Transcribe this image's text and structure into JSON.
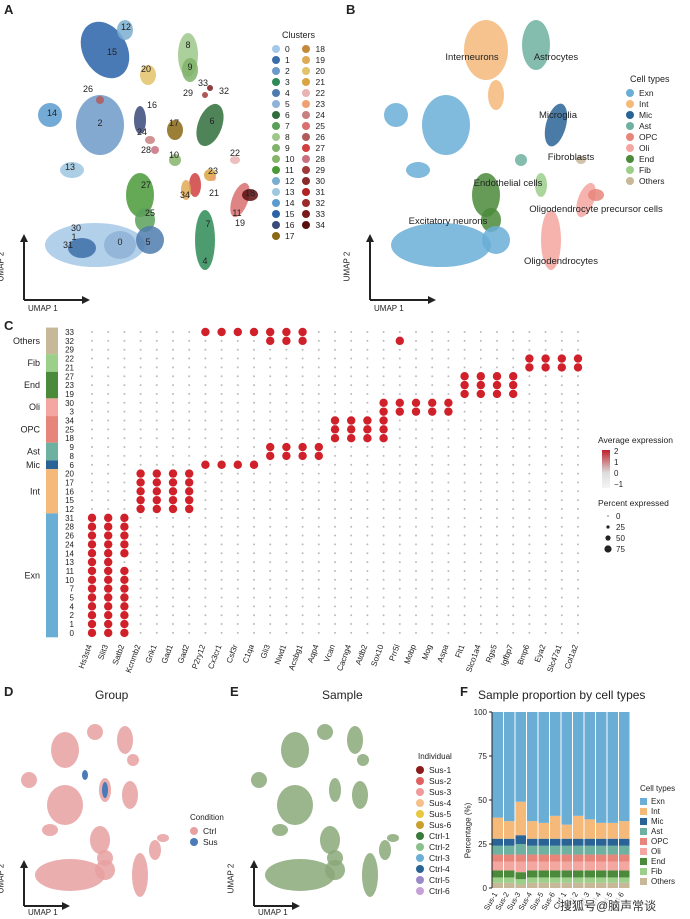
{
  "panels": {
    "A": "A",
    "B": "B",
    "C": "C",
    "D": "D",
    "E": "E",
    "F": "F"
  },
  "umap": {
    "x": "UMAP 1",
    "y": "UMAP 2"
  },
  "panelA": {
    "legend_title": "Clusters",
    "clusters": [
      "0",
      "1",
      "2",
      "3",
      "4",
      "5",
      "6",
      "7",
      "8",
      "9",
      "10",
      "11",
      "12",
      "13",
      "14",
      "15",
      "16",
      "17",
      "18",
      "19",
      "20",
      "21",
      "22",
      "23",
      "24",
      "25",
      "26",
      "27",
      "28",
      "29",
      "30",
      "31",
      "32",
      "33",
      "34"
    ],
    "colors": [
      "#a6c8e8",
      "#3c6fa8",
      "#6d9ac8",
      "#2e8b57",
      "#4f7cae",
      "#8eb3d6",
      "#2f6e3a",
      "#5aa05a",
      "#9dc88a",
      "#7fb36a",
      "#86b46b",
      "#4a9a3a",
      "#7aaed0",
      "#9ec7e0",
      "#5c9bcf",
      "#2a63a8",
      "#3a4a7a",
      "#8b6914",
      "#c48a3a",
      "#e0a955",
      "#e3c26a",
      "#d9a441",
      "#e9b3b3",
      "#f0a070",
      "#c97f7f",
      "#d96f6f",
      "#b05a5a",
      "#d04040",
      "#c9707f",
      "#a03a3a",
      "#8a2a2a",
      "#b22222",
      "#9a2a2a",
      "#7a1a1a",
      "#5a0f0f"
    ],
    "labels": [
      "12",
      "15",
      "8",
      "9",
      "20",
      "33",
      "29",
      "32",
      "26",
      "16",
      "2",
      "14",
      "24",
      "28",
      "17",
      "6",
      "22",
      "10",
      "13",
      "23",
      "21",
      "34",
      "18",
      "19",
      "27",
      "11",
      "25",
      "7",
      "30",
      "1",
      "31",
      "0",
      "5",
      "4",
      "3"
    ]
  },
  "panelB": {
    "legend_title": "Cell types",
    "types": [
      "Exn",
      "Int",
      "Mic",
      "Ast",
      "OPC",
      "Oli",
      "End",
      "Fib",
      "Others"
    ],
    "colors": [
      "#6aaed6",
      "#f5b97a",
      "#2a6496",
      "#6fb1a0",
      "#e8857a",
      "#f4a6a0",
      "#4a8a3a",
      "#9ccf8a",
      "#c8b89a"
    ],
    "labels": [
      "Interneurons",
      "Astrocytes",
      "Microglia",
      "Fibroblasts",
      "Endothelial cells",
      "Oligodendrocyte precursor cells",
      "Excitatory neurons",
      "Oligodendrocytes"
    ]
  },
  "panelC": {
    "genes": [
      "Hs3st4",
      "Slit3",
      "Satb2",
      "Kcnmb2",
      "Grik1",
      "Gad1",
      "Gad2",
      "P2ry12",
      "Cx3cr1",
      "Csf3r",
      "C1qa",
      "Gli3",
      "Nwd1",
      "Acsbg1",
      "Aqp4",
      "Vcan",
      "Cacng4",
      "Atdb2",
      "Sox10",
      "Prr5l",
      "Mobp",
      "Mog",
      "Aspa",
      "Flt1",
      "Slco1a4",
      "Rgs5",
      "Igfbp7",
      "Bmp6",
      "Eya2",
      "Slc47a1",
      "Col1a2"
    ],
    "rows": [
      "33",
      "32",
      "29",
      "22",
      "21",
      "27",
      "23",
      "19",
      "30",
      "3",
      "34",
      "25",
      "18",
      "9",
      "8",
      "6",
      "20",
      "17",
      "16",
      "15",
      "12",
      "31",
      "28",
      "26",
      "24",
      "14",
      "13",
      "11",
      "10",
      "7",
      "5",
      "4",
      "2",
      "1",
      "0"
    ],
    "groups": [
      {
        "name": "Others",
        "start": 0,
        "n": 3,
        "color": "#c8b89a"
      },
      {
        "name": "Fib",
        "start": 3,
        "n": 2,
        "color": "#9ccf8a"
      },
      {
        "name": "End",
        "start": 5,
        "n": 3,
        "color": "#4a8a3a"
      },
      {
        "name": "Oli",
        "start": 8,
        "n": 2,
        "color": "#f4a6a0"
      },
      {
        "name": "OPC",
        "start": 10,
        "n": 3,
        "color": "#e8857a"
      },
      {
        "name": "Ast",
        "start": 13,
        "n": 2,
        "color": "#6fb1a0"
      },
      {
        "name": "Mic",
        "start": 15,
        "n": 1,
        "color": "#2a6496"
      },
      {
        "name": "Int",
        "start": 16,
        "n": 5,
        "color": "#f5b97a"
      },
      {
        "name": "Exn",
        "start": 21,
        "n": 14,
        "color": "#6aaed6"
      }
    ],
    "avg_title": "Average expression",
    "avg_ticks": [
      "2",
      "1",
      "0",
      "−1"
    ],
    "pct_title": "Percent expressed",
    "pct_ticks": [
      "0",
      "25",
      "50",
      "75"
    ],
    "markers": [
      {
        "gene": 0,
        "rows": [
          21,
          22,
          23,
          24,
          25,
          26,
          27,
          28,
          29,
          30,
          31,
          32,
          33,
          34
        ]
      },
      {
        "gene": 1,
        "rows": [
          21,
          22,
          23,
          24,
          25,
          26,
          27,
          28,
          29,
          30,
          31,
          32,
          33,
          34
        ]
      },
      {
        "gene": 2,
        "rows": [
          21,
          22,
          23,
          24,
          25,
          27,
          28,
          29,
          30,
          31,
          32,
          33,
          34
        ]
      },
      {
        "gene": 3,
        "rows": [
          16,
          17,
          18,
          19,
          20
        ]
      },
      {
        "gene": 4,
        "rows": [
          16,
          17,
          18,
          19,
          20
        ]
      },
      {
        "gene": 5,
        "rows": [
          16,
          17,
          18,
          19,
          20
        ]
      },
      {
        "gene": 6,
        "rows": [
          16,
          17,
          18,
          19,
          20
        ]
      },
      {
        "gene": 7,
        "rows": [
          15,
          0
        ]
      },
      {
        "gene": 8,
        "rows": [
          15,
          0
        ]
      },
      {
        "gene": 9,
        "rows": [
          15,
          0
        ]
      },
      {
        "gene": 10,
        "rows": [
          15,
          0
        ]
      },
      {
        "gene": 11,
        "rows": [
          13,
          14,
          0,
          1
        ]
      },
      {
        "gene": 12,
        "rows": [
          13,
          14,
          0,
          1
        ]
      },
      {
        "gene": 13,
        "rows": [
          13,
          14,
          0,
          1
        ]
      },
      {
        "gene": 14,
        "rows": [
          13,
          14
        ]
      },
      {
        "gene": 15,
        "rows": [
          10,
          11,
          12
        ]
      },
      {
        "gene": 16,
        "rows": [
          10,
          11,
          12
        ]
      },
      {
        "gene": 17,
        "rows": [
          10,
          11,
          12
        ]
      },
      {
        "gene": 18,
        "rows": [
          10,
          11,
          12,
          8,
          9
        ]
      },
      {
        "gene": 19,
        "rows": [
          8,
          9,
          1
        ]
      },
      {
        "gene": 20,
        "rows": [
          8,
          9
        ]
      },
      {
        "gene": 21,
        "rows": [
          8,
          9
        ]
      },
      {
        "gene": 22,
        "rows": [
          8,
          9
        ]
      },
      {
        "gene": 23,
        "rows": [
          5,
          6,
          7
        ]
      },
      {
        "gene": 24,
        "rows": [
          5,
          6,
          7
        ]
      },
      {
        "gene": 25,
        "rows": [
          5,
          6,
          7
        ]
      },
      {
        "gene": 26,
        "rows": [
          5,
          6,
          7
        ]
      },
      {
        "gene": 27,
        "rows": [
          3,
          4
        ]
      },
      {
        "gene": 28,
        "rows": [
          3,
          4
        ]
      },
      {
        "gene": 29,
        "rows": [
          3,
          4
        ]
      },
      {
        "gene": 30,
        "rows": [
          3,
          4
        ]
      }
    ]
  },
  "panelD": {
    "title": "Group",
    "legend_title": "Condition",
    "items": [
      "Ctrl",
      "Sus"
    ],
    "colors": [
      "#e8a0a0",
      "#4a7ab8"
    ]
  },
  "panelE": {
    "title": "Sample",
    "legend_title": "Individual",
    "items": [
      "Sus-1",
      "Sus-2",
      "Sus-3",
      "Sus-4",
      "Sus-5",
      "Sus-6",
      "Ctrl-1",
      "Ctrl-2",
      "Ctrl-3",
      "Ctrl-4",
      "Ctrl-5",
      "Ctrl-6"
    ],
    "colors": [
      "#8b1a1a",
      "#e06060",
      "#f09a9a",
      "#f5c08a",
      "#e8c840",
      "#c8a030",
      "#3a7a3a",
      "#8ac08a",
      "#6aaed6",
      "#2a6496",
      "#9a8ac8",
      "#c8a0d8"
    ]
  },
  "panelF": {
    "title": "Sample proportion by cell types",
    "ylabel": "Percentage (%)",
    "legend_title": "Cell types",
    "chart_data": {
      "type": "bar",
      "categories": [
        "Sus-1",
        "Sus-2",
        "Sus-3",
        "Sus-4",
        "Sus-5",
        "Sus-6",
        "Ctrl-1",
        "Ctrl-2",
        "Ctrl-3",
        "Ctrl-4",
        "Ctrl-5",
        "Ctrl-6"
      ],
      "ylim": [
        0,
        100
      ],
      "yticks": [
        "0",
        "25",
        "50",
        "75",
        "100"
      ],
      "series": [
        {
          "name": "Others",
          "values": [
            3,
            3,
            2,
            3,
            3,
            3,
            3,
            3,
            3,
            3,
            3,
            3
          ]
        },
        {
          "name": "Fib",
          "values": [
            3,
            3,
            3,
            3,
            3,
            3,
            3,
            3,
            3,
            3,
            3,
            3
          ]
        },
        {
          "name": "End",
          "values": [
            4,
            4,
            4,
            4,
            4,
            4,
            4,
            4,
            4,
            4,
            4,
            4
          ]
        },
        {
          "name": "Oli",
          "values": [
            5,
            5,
            6,
            5,
            5,
            5,
            5,
            5,
            5,
            5,
            5,
            5
          ]
        },
        {
          "name": "OPC",
          "values": [
            4,
            4,
            4,
            4,
            4,
            4,
            4,
            4,
            4,
            4,
            4,
            4
          ]
        },
        {
          "name": "Ast",
          "values": [
            5,
            5,
            6,
            5,
            5,
            5,
            5,
            5,
            5,
            5,
            5,
            5
          ]
        },
        {
          "name": "Mic",
          "values": [
            4,
            4,
            5,
            4,
            4,
            4,
            4,
            4,
            4,
            4,
            4,
            4
          ]
        },
        {
          "name": "Int",
          "values": [
            12,
            10,
            19,
            10,
            9,
            13,
            8,
            13,
            11,
            9,
            9,
            10
          ]
        },
        {
          "name": "Exn",
          "values": [
            60,
            62,
            51,
            62,
            63,
            59,
            64,
            59,
            61,
            63,
            63,
            62
          ]
        }
      ],
      "colors": [
        "#c8b89a",
        "#9ccf8a",
        "#4a8a3a",
        "#f4a6a0",
        "#e8857a",
        "#6fb1a0",
        "#2a6496",
        "#f5b97a",
        "#6aaed6"
      ]
    }
  },
  "watermark": "搜狐号@脑声常谈"
}
